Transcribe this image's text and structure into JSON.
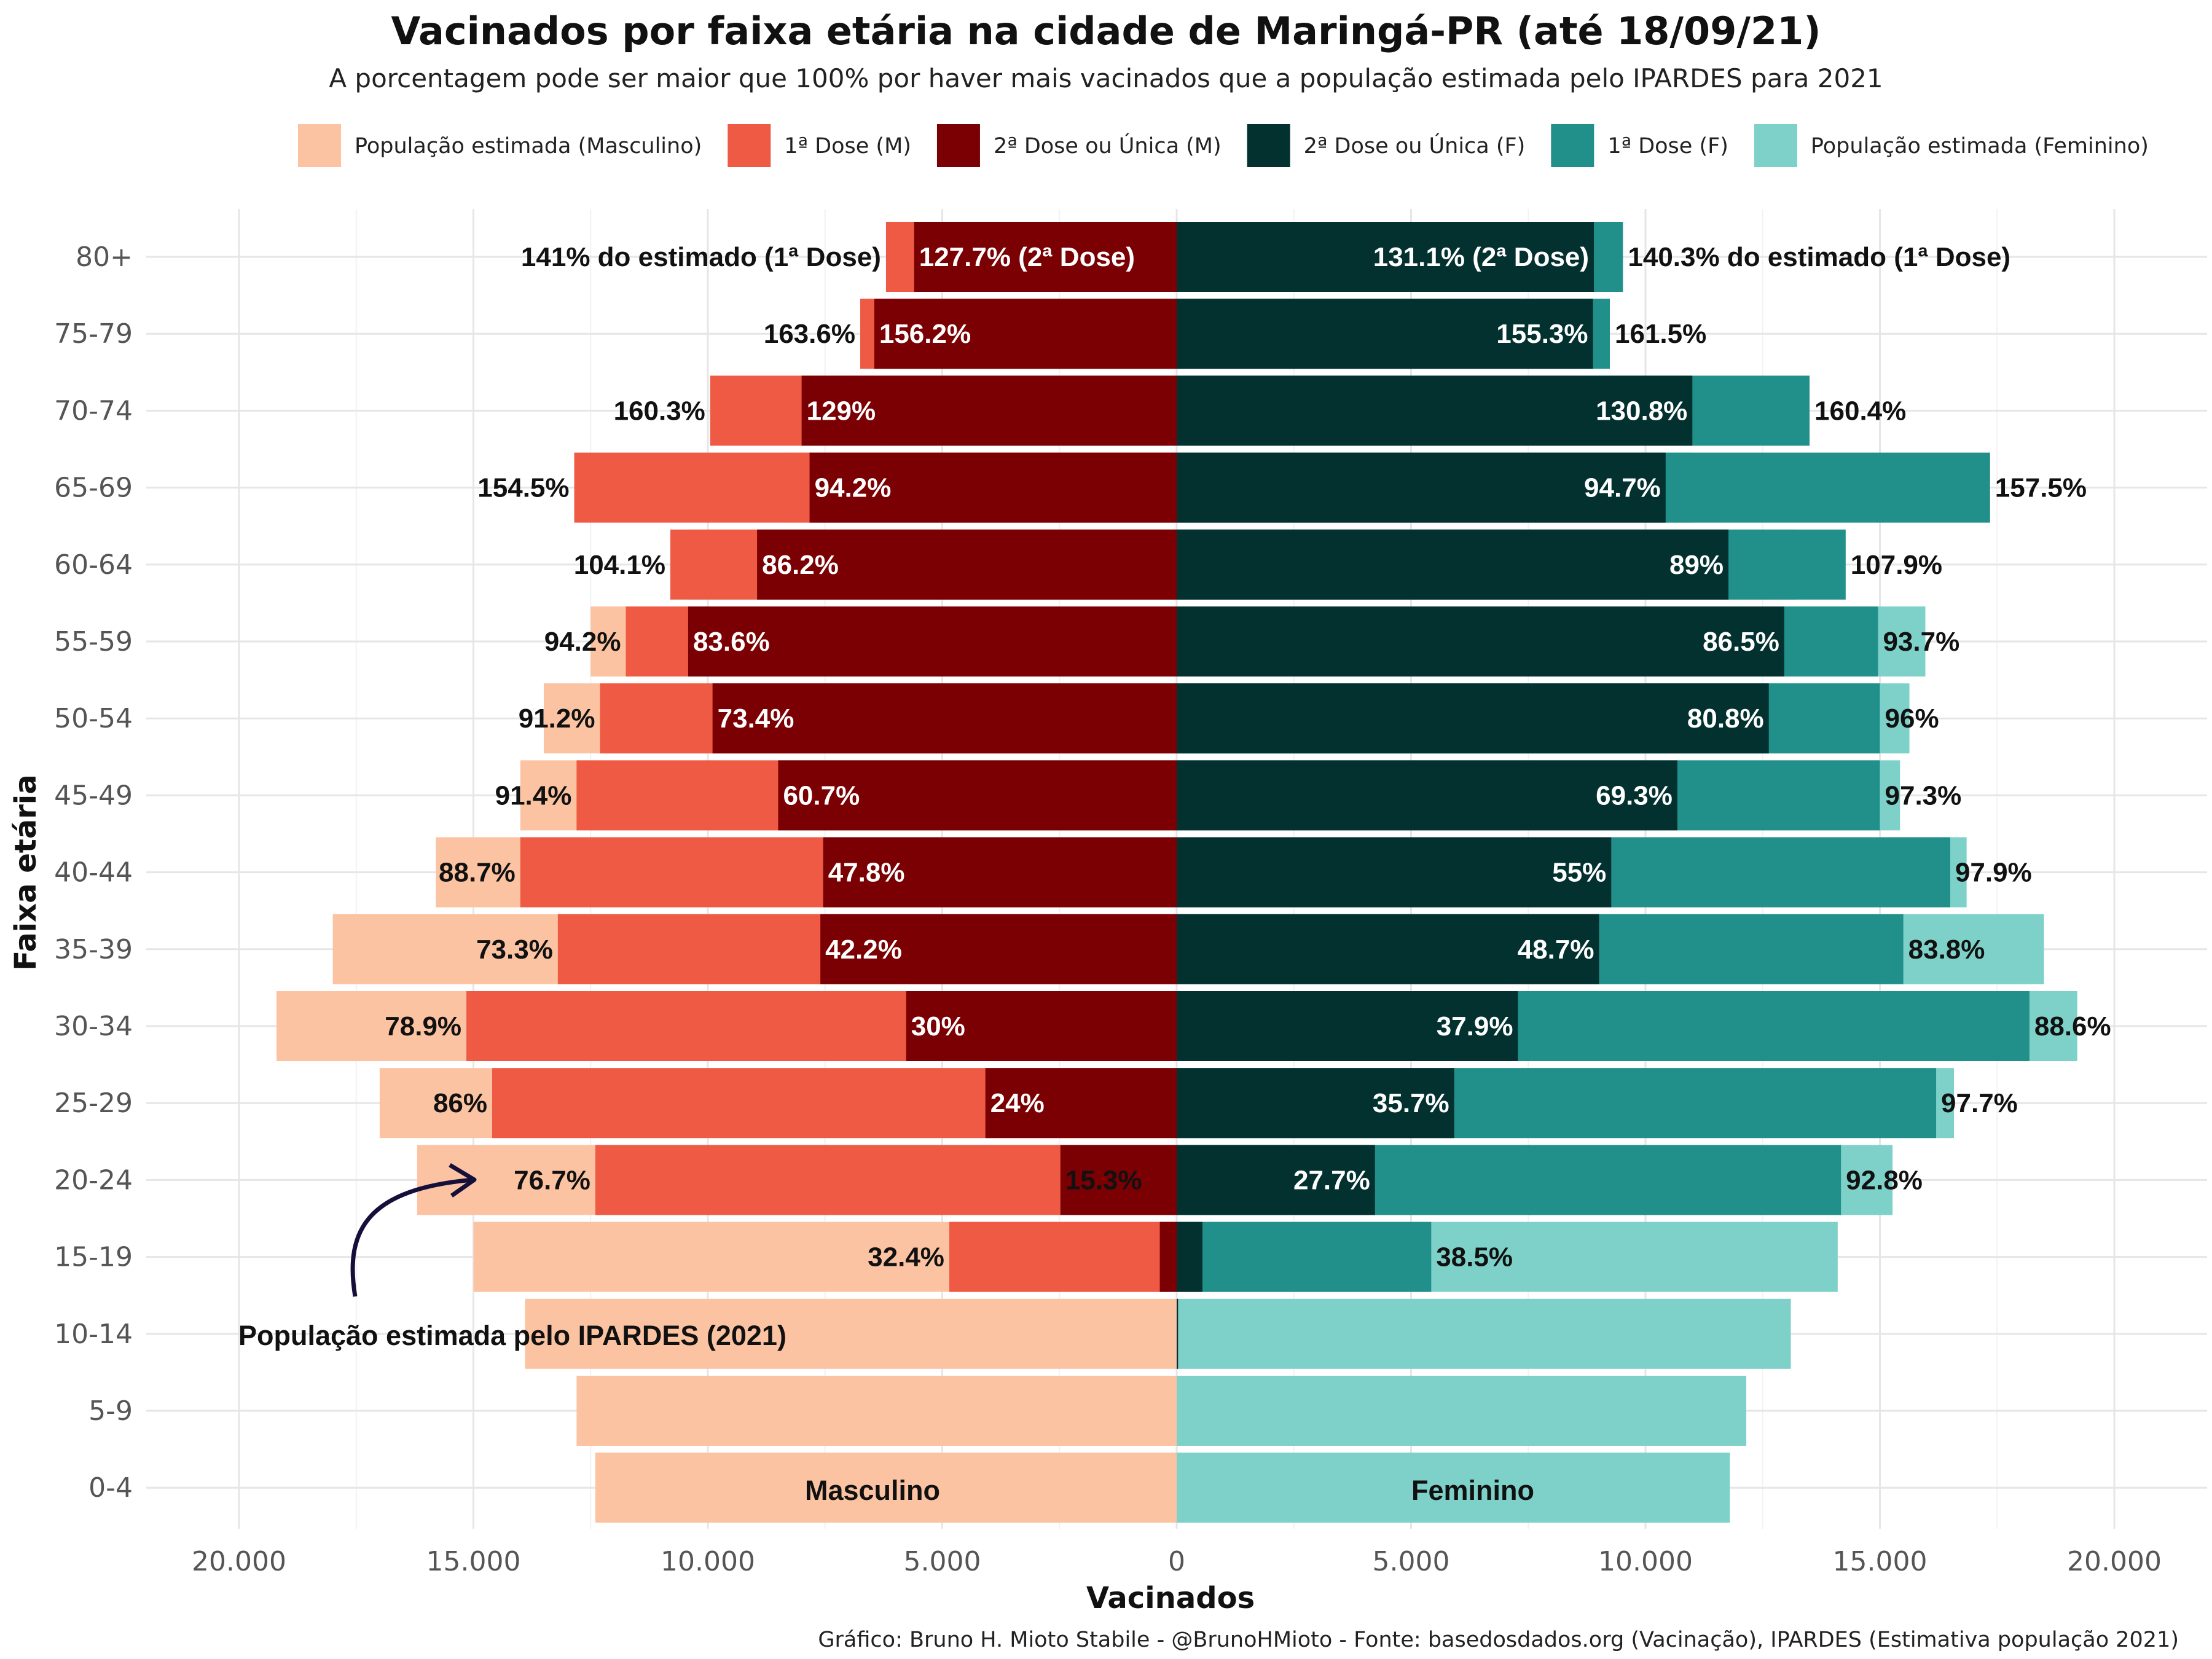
{
  "chart_data": {
    "type": "bar",
    "title": "Vacinados por faixa etária na cidade de Maringá-PR (até 18/09/21)",
    "subtitle": "A porcentagem pode ser maior que 100% por haver mais vacinados que a população estimada pelo IPARDES para 2021",
    "xlabel": "Vacinados",
    "ylabel": "Faixa etária",
    "caption": "Gráfico: Bruno H. Mioto Stabile - @BrunoHMioto - Fonte: basedosdados.org (Vacinação), IPARDES (Estimativa população 2021)",
    "xlim": [
      -20000,
      20000
    ],
    "x_ticks": [
      -20000,
      -15000,
      -10000,
      -5000,
      0,
      5000,
      10000,
      15000,
      20000
    ],
    "x_tick_labels": [
      "20.000",
      "15.000",
      "10.000",
      "5.000",
      "0",
      "5.000",
      "10.000",
      "15.000",
      "20.000"
    ],
    "grid": true,
    "legend_position": "top",
    "legend": [
      {
        "label": "População estimada (Masculino)",
        "color": "#FCC3A2"
      },
      {
        "label": "1ª Dose (M)",
        "color": "#EF5A45"
      },
      {
        "label": "2ª Dose ou Única (M)",
        "color": "#7A0003"
      },
      {
        "label": "2ª Dose ou Única (F)",
        "color": "#033130"
      },
      {
        "label": "1ª Dose (F)",
        "color": "#21908A"
      },
      {
        "label": "População estimada (Feminino)",
        "color": "#7ED1C9"
      }
    ],
    "categories": [
      "80+",
      "75-79",
      "70-74",
      "65-69",
      "60-64",
      "55-59",
      "50-54",
      "45-49",
      "40-44",
      "35-39",
      "30-34",
      "25-29",
      "20-24",
      "15-19",
      "10-14",
      "5-9",
      "0-4"
    ],
    "series": [
      {
        "name": "População estimada (Masculino)",
        "values": [
          4400,
          4200,
          6200,
          8300,
          10400,
          12500,
          13500,
          14000,
          15800,
          18000,
          19200,
          17000,
          16200,
          15000,
          13900,
          12800,
          12400
        ]
      },
      {
        "name": "1ª Dose (M)",
        "values": [
          6200,
          6750,
          9950,
          12850,
          10800,
          11750,
          12300,
          12800,
          14000,
          13200,
          15150,
          14600,
          12400,
          4850,
          0,
          0,
          0
        ]
      },
      {
        "name": "2ª Dose ou Única (M)",
        "values": [
          5600,
          6450,
          8000,
          7830,
          8950,
          10420,
          9900,
          8500,
          7540,
          7600,
          5770,
          4080,
          2480,
          360,
          0,
          0,
          0
        ]
      },
      {
        "name": "2ª Dose ou Única (F)",
        "values": [
          8900,
          8880,
          11000,
          10430,
          11770,
          12960,
          12630,
          10680,
          9270,
          9010,
          7280,
          5920,
          4230,
          550,
          30,
          0,
          0
        ]
      },
      {
        "name": "1ª Dose (F)",
        "values": [
          9520,
          9240,
          13500,
          17350,
          14270,
          14960,
          15000,
          15000,
          16500,
          15500,
          18190,
          16200,
          14170,
          5430,
          0,
          0,
          0
        ]
      },
      {
        "name": "População estimada (Feminino)",
        "values": [
          6790,
          5720,
          8420,
          11020,
          13220,
          15970,
          15630,
          15430,
          16850,
          18500,
          19210,
          16580,
          15270,
          14100,
          13100,
          12150,
          11800
        ]
      }
    ],
    "labels_m_outer": [
      "141% do estimado (1ª Dose)",
      "163.6%",
      "160.3%",
      "154.5%",
      "104.1%",
      "94.2%",
      "91.2%",
      "91.4%",
      "88.7%",
      "73.3%",
      "78.9%",
      "86%",
      "76.7%",
      "32.4%",
      "",
      "",
      ""
    ],
    "labels_m_inner": [
      "127.7% (2ª Dose)",
      "156.2%",
      "129%",
      "94.2%",
      "86.2%",
      "83.6%",
      "73.4%",
      "60.7%",
      "47.8%",
      "42.2%",
      "30%",
      "24%",
      "15.3%",
      "",
      "",
      "",
      ""
    ],
    "labels_f_inner": [
      "131.1% (2ª Dose)",
      "155.3%",
      "130.8%",
      "94.7%",
      "89%",
      "86.5%",
      "80.8%",
      "69.3%",
      "55%",
      "48.7%",
      "37.9%",
      "35.7%",
      "27.7%",
      "",
      "",
      "",
      ""
    ],
    "labels_f_outer": [
      "140.3% do estimado (1ª Dose)",
      "161.5%",
      "160.4%",
      "157.5%",
      "107.9%",
      "93.7%",
      "96%",
      "97.3%",
      "97.9%",
      "83.8%",
      "88.6%",
      "97.7%",
      "92.8%",
      "38.5%",
      "",
      "",
      ""
    ],
    "annotations": {
      "population_note": "População estimada pelo IPARDES (2021)",
      "male_side": "Masculino",
      "female_side": "Feminino"
    }
  }
}
